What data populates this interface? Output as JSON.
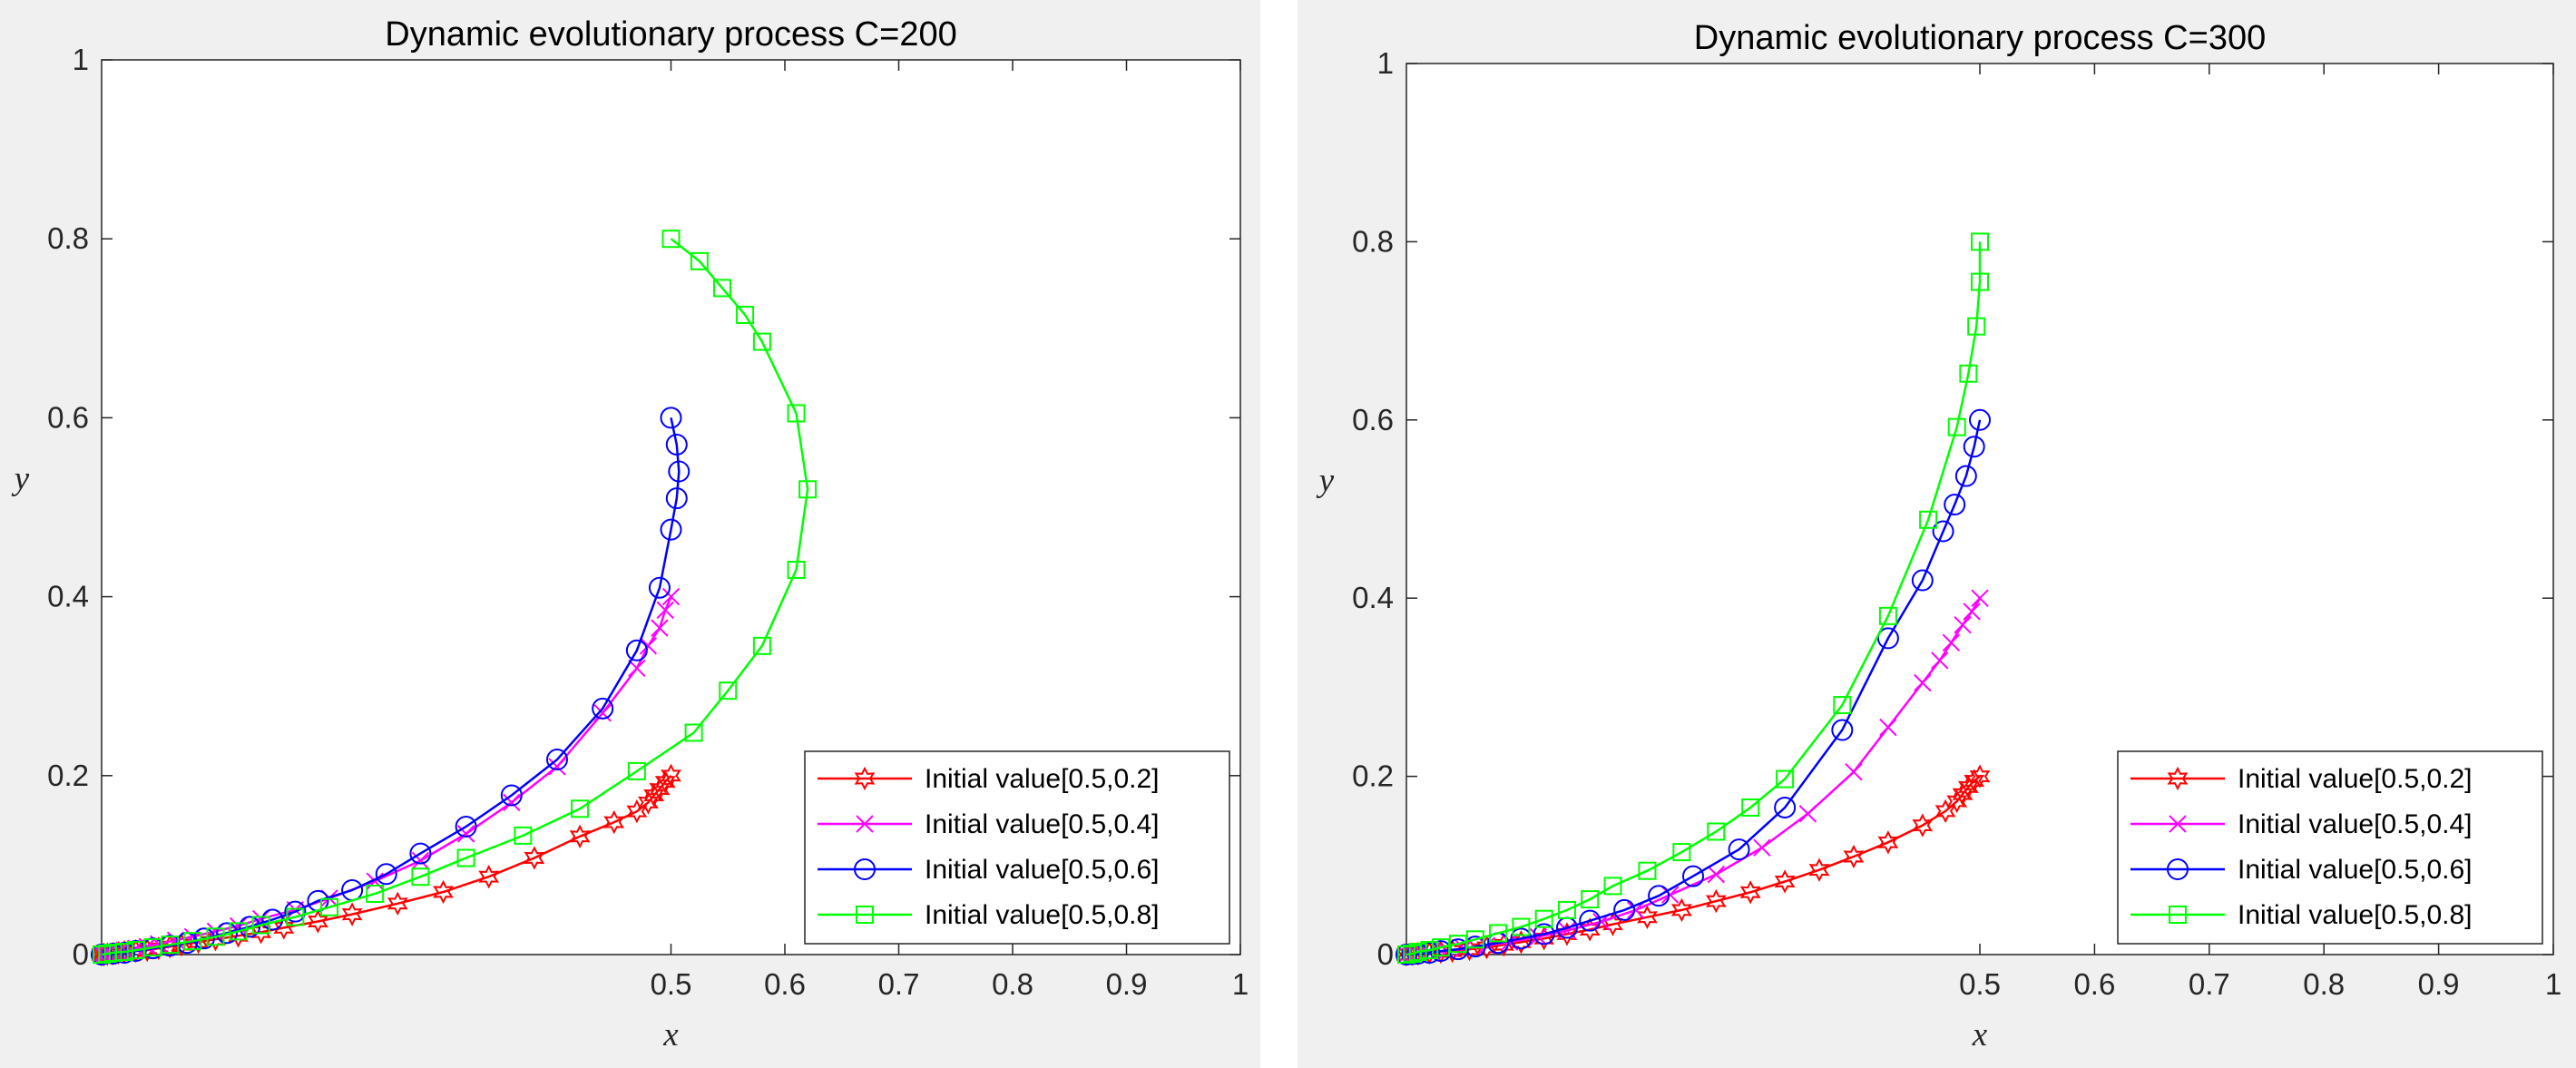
{
  "chart_data": [
    {
      "type": "line",
      "title": "Dynamic evolutionary process C=200",
      "xlabel": "x",
      "ylabel": "y",
      "xlim": [
        0,
        1
      ],
      "ylim": [
        0,
        1
      ],
      "xticks": [
        0.5,
        0.6,
        0.7,
        0.8,
        0.9,
        1
      ],
      "xtick_labels": [
        "0.5",
        "0.6",
        "0.7",
        "0.8",
        "0.9",
        "1"
      ],
      "yticks": [
        0,
        0.2,
        0.4,
        0.6,
        0.8,
        1
      ],
      "ytick_labels": [
        "0",
        "0.2",
        "0.4",
        "0.6",
        "0.8",
        "1"
      ],
      "grid": false,
      "legend_position": "bottom-right",
      "series": [
        {
          "name": "Initial value[0.5,0.2]",
          "color": "#ff0000",
          "marker": "hexagram",
          "x": [
            0.5,
            0.495,
            0.49,
            0.485,
            0.48,
            0.47,
            0.45,
            0.42,
            0.38,
            0.34,
            0.3,
            0.26,
            0.22,
            0.19,
            0.16,
            0.14,
            0.12,
            0.1,
            0.085,
            0.07,
            0.06,
            0.05,
            0.04,
            0.03,
            0.02,
            0.015,
            0.01,
            0.005,
            0.002,
            0.0
          ],
          "y": [
            0.2,
            0.193,
            0.185,
            0.178,
            0.17,
            0.16,
            0.148,
            0.132,
            0.108,
            0.087,
            0.07,
            0.057,
            0.045,
            0.037,
            0.03,
            0.025,
            0.021,
            0.017,
            0.014,
            0.011,
            0.009,
            0.007,
            0.005,
            0.004,
            0.003,
            0.002,
            0.001,
            0.0005,
            0.0002,
            0.0
          ]
        },
        {
          "name": "Initial value[0.5,0.4]",
          "color": "#ff00ff",
          "marker": "x",
          "x": [
            0.5,
            0.495,
            0.49,
            0.48,
            0.47,
            0.44,
            0.4,
            0.36,
            0.32,
            0.28,
            0.24,
            0.2,
            0.17,
            0.14,
            0.12,
            0.1,
            0.08,
            0.065,
            0.05,
            0.04,
            0.03,
            0.02,
            0.015,
            0.01,
            0.005,
            0.002,
            0.0
          ],
          "y": [
            0.4,
            0.385,
            0.365,
            0.345,
            0.32,
            0.27,
            0.21,
            0.17,
            0.135,
            0.105,
            0.082,
            0.063,
            0.05,
            0.04,
            0.032,
            0.026,
            0.02,
            0.016,
            0.012,
            0.009,
            0.007,
            0.005,
            0.003,
            0.002,
            0.001,
            0.0005,
            0.0
          ]
        },
        {
          "name": "Initial value[0.5,0.6]",
          "color": "#0000ff",
          "marker": "circle",
          "x": [
            0.5,
            0.505,
            0.507,
            0.505,
            0.5,
            0.49,
            0.47,
            0.44,
            0.4,
            0.36,
            0.32,
            0.28,
            0.25,
            0.22,
            0.19,
            0.17,
            0.15,
            0.13,
            0.11,
            0.09,
            0.075,
            0.06,
            0.045,
            0.03,
            0.02,
            0.01,
            0.0
          ],
          "y": [
            0.6,
            0.57,
            0.54,
            0.51,
            0.475,
            0.41,
            0.34,
            0.275,
            0.218,
            0.178,
            0.143,
            0.113,
            0.09,
            0.072,
            0.06,
            0.048,
            0.039,
            0.031,
            0.024,
            0.018,
            0.013,
            0.01,
            0.007,
            0.004,
            0.002,
            0.001,
            0.0
          ]
        },
        {
          "name": "Initial value[0.5,0.8]",
          "color": "#00ff00",
          "marker": "square",
          "x": [
            0.5,
            0.525,
            0.545,
            0.565,
            0.58,
            0.61,
            0.62,
            0.61,
            0.58,
            0.55,
            0.52,
            0.47,
            0.42,
            0.37,
            0.32,
            0.28,
            0.24,
            0.2,
            0.17,
            0.14,
            0.12,
            0.1,
            0.08,
            0.06,
            0.045,
            0.03,
            0.02,
            0.01,
            0.005,
            0.0
          ],
          "y": [
            0.8,
            0.775,
            0.745,
            0.715,
            0.685,
            0.605,
            0.52,
            0.43,
            0.345,
            0.295,
            0.248,
            0.205,
            0.163,
            0.133,
            0.108,
            0.087,
            0.068,
            0.053,
            0.042,
            0.033,
            0.026,
            0.02,
            0.015,
            0.011,
            0.008,
            0.005,
            0.003,
            0.002,
            0.001,
            0.0
          ]
        }
      ]
    },
    {
      "type": "line",
      "title": "Dynamic evolutionary process C=300",
      "xlabel": "x",
      "ylabel": "y",
      "xlim": [
        0,
        1
      ],
      "ylim": [
        0,
        1
      ],
      "xticks": [
        0.5,
        0.6,
        0.7,
        0.8,
        0.9,
        1
      ],
      "xtick_labels": [
        "0.5",
        "0.6",
        "0.7",
        "0.8",
        "0.9",
        "1"
      ],
      "yticks": [
        0,
        0.2,
        0.4,
        0.6,
        0.8,
        1
      ],
      "ytick_labels": [
        "0",
        "0.2",
        "0.4",
        "0.6",
        "0.8",
        "1"
      ],
      "grid": false,
      "legend_position": "bottom-right",
      "series": [
        {
          "name": "Initial value[0.5,0.2]",
          "color": "#ff0000",
          "marker": "hexagram",
          "x": [
            0.5,
            0.495,
            0.49,
            0.485,
            0.48,
            0.47,
            0.45,
            0.42,
            0.39,
            0.36,
            0.33,
            0.3,
            0.27,
            0.24,
            0.21,
            0.18,
            0.16,
            0.14,
            0.12,
            0.1,
            0.085,
            0.07,
            0.055,
            0.04,
            0.03,
            0.02,
            0.01,
            0.005,
            0.0
          ],
          "y": [
            0.2,
            0.195,
            0.188,
            0.18,
            0.172,
            0.161,
            0.145,
            0.126,
            0.11,
            0.095,
            0.082,
            0.07,
            0.06,
            0.05,
            0.042,
            0.034,
            0.028,
            0.023,
            0.018,
            0.014,
            0.011,
            0.008,
            0.006,
            0.004,
            0.003,
            0.002,
            0.001,
            0.0005,
            0.0
          ]
        },
        {
          "name": "Initial value[0.5,0.4]",
          "color": "#ff00ff",
          "marker": "x",
          "x": [
            0.5,
            0.493,
            0.485,
            0.475,
            0.465,
            0.45,
            0.42,
            0.39,
            0.35,
            0.31,
            0.27,
            0.23,
            0.2,
            0.17,
            0.14,
            0.115,
            0.09,
            0.07,
            0.05,
            0.035,
            0.02,
            0.01,
            0.005,
            0.0
          ],
          "y": [
            0.4,
            0.385,
            0.37,
            0.35,
            0.33,
            0.305,
            0.255,
            0.205,
            0.158,
            0.12,
            0.09,
            0.067,
            0.05,
            0.037,
            0.027,
            0.02,
            0.014,
            0.01,
            0.007,
            0.004,
            0.002,
            0.001,
            0.0005,
            0.0
          ]
        },
        {
          "name": "Initial value[0.5,0.6]",
          "color": "#0000ff",
          "marker": "circle",
          "x": [
            0.5,
            0.495,
            0.488,
            0.478,
            0.468,
            0.45,
            0.42,
            0.38,
            0.33,
            0.29,
            0.25,
            0.22,
            0.19,
            0.16,
            0.14,
            0.12,
            0.1,
            0.08,
            0.06,
            0.045,
            0.03,
            0.02,
            0.01,
            0.005,
            0.0
          ],
          "y": [
            0.6,
            0.57,
            0.537,
            0.505,
            0.475,
            0.42,
            0.355,
            0.252,
            0.165,
            0.118,
            0.088,
            0.066,
            0.05,
            0.038,
            0.03,
            0.023,
            0.018,
            0.013,
            0.009,
            0.006,
            0.004,
            0.002,
            0.001,
            0.0005,
            0.0
          ]
        },
        {
          "name": "Initial value[0.5,0.8]",
          "color": "#00ff00",
          "marker": "square",
          "x": [
            0.5,
            0.5,
            0.497,
            0.49,
            0.48,
            0.455,
            0.42,
            0.38,
            0.33,
            0.3,
            0.27,
            0.24,
            0.21,
            0.18,
            0.16,
            0.14,
            0.12,
            0.1,
            0.08,
            0.06,
            0.045,
            0.03,
            0.02,
            0.01,
            0.005,
            0.0
          ],
          "y": [
            0.8,
            0.755,
            0.705,
            0.652,
            0.592,
            0.488,
            0.38,
            0.28,
            0.197,
            0.165,
            0.138,
            0.115,
            0.094,
            0.077,
            0.062,
            0.05,
            0.04,
            0.031,
            0.024,
            0.017,
            0.012,
            0.008,
            0.005,
            0.003,
            0.001,
            0.0
          ]
        }
      ]
    }
  ]
}
